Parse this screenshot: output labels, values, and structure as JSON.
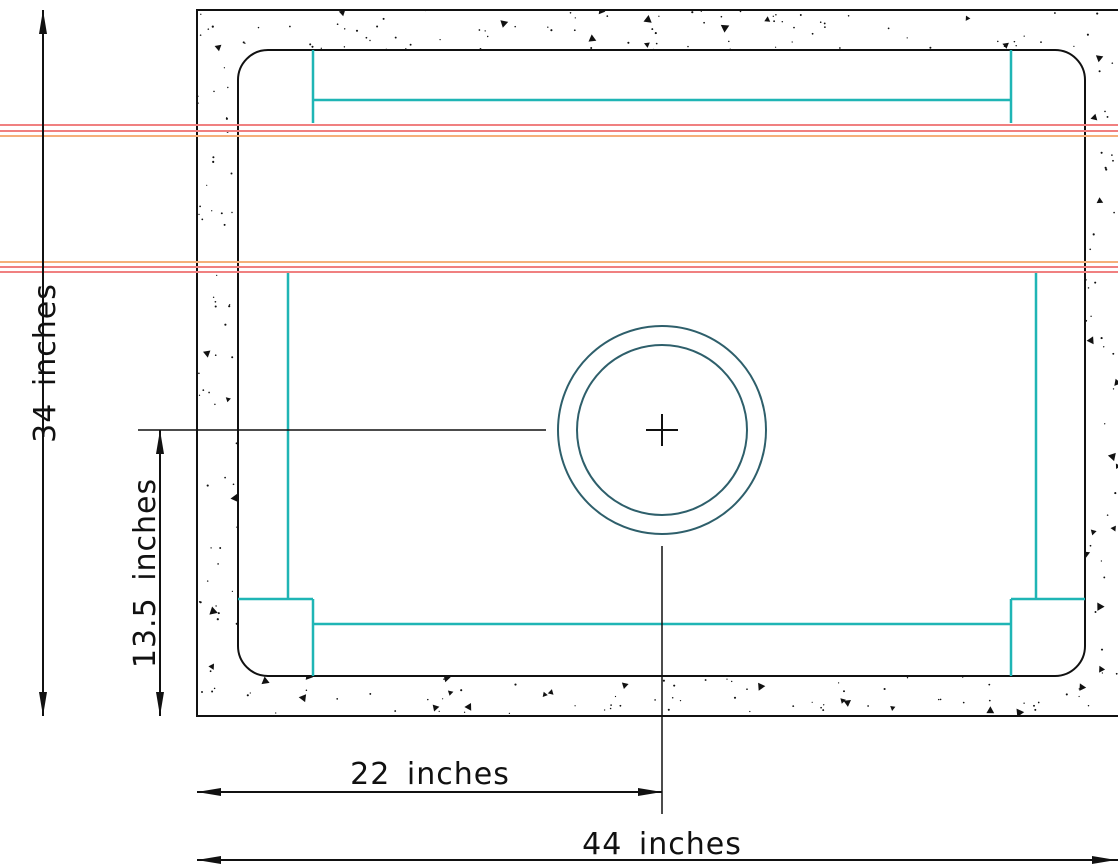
{
  "dimensions": {
    "height_label": "34 inches",
    "offset_height_label": "13.5 inches",
    "half_width_label": "22 inches",
    "width_label": "44 inches"
  },
  "colors": {
    "outline": "#111111",
    "concrete_stipple": "#111111",
    "reinforcement": "#1fb5b5",
    "pipe": "#2e5f6b",
    "utility_line_red": "#f08080",
    "utility_line_orange": "#f5b07a"
  }
}
